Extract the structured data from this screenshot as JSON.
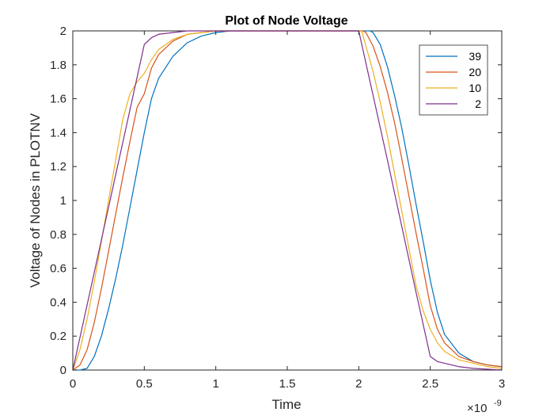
{
  "chart_data": {
    "type": "line",
    "title": "Plot of Node Voltage",
    "xlabel": "Time",
    "ylabel": "Voltage of Nodes in PLOTNV",
    "x_exponent": {
      "base": "×10",
      "exponent": "-9"
    },
    "xlim": [
      0,
      3
    ],
    "ylim": [
      0,
      2
    ],
    "x_ticks": [
      0,
      0.5,
      1,
      1.5,
      2,
      2.5,
      3
    ],
    "x_tick_labels": [
      "0",
      "0.5",
      "1",
      "1.5",
      "2",
      "2.5",
      "3"
    ],
    "y_ticks": [
      0,
      0.2,
      0.4,
      0.6,
      0.8,
      1,
      1.2,
      1.4,
      1.6,
      1.8,
      2
    ],
    "y_tick_labels": [
      "0",
      "0.2",
      "0.4",
      "0.6",
      "0.8",
      "1",
      "1.2",
      "1.4",
      "1.6",
      "1.8",
      "2"
    ],
    "grid": false,
    "legend_position": "top-right",
    "series": [
      {
        "name": "39",
        "color": "#0072BD",
        "points": [
          [
            0,
            0
          ],
          [
            0.05,
            0
          ],
          [
            0.1,
            0.01
          ],
          [
            0.15,
            0.08
          ],
          [
            0.2,
            0.2
          ],
          [
            0.25,
            0.36
          ],
          [
            0.3,
            0.54
          ],
          [
            0.35,
            0.74
          ],
          [
            0.4,
            0.96
          ],
          [
            0.45,
            1.18
          ],
          [
            0.5,
            1.4
          ],
          [
            0.55,
            1.6
          ],
          [
            0.6,
            1.72
          ],
          [
            0.7,
            1.85
          ],
          [
            0.8,
            1.93
          ],
          [
            0.9,
            1.97
          ],
          [
            1.0,
            1.99
          ],
          [
            1.1,
            2.0
          ],
          [
            1.5,
            2.0
          ],
          [
            2.0,
            2.0
          ],
          [
            2.05,
            2.0
          ],
          [
            2.08,
            2.0
          ],
          [
            2.1,
            1.99
          ],
          [
            2.15,
            1.92
          ],
          [
            2.2,
            1.79
          ],
          [
            2.25,
            1.62
          ],
          [
            2.3,
            1.43
          ],
          [
            2.35,
            1.21
          ],
          [
            2.4,
            0.98
          ],
          [
            2.45,
            0.76
          ],
          [
            2.5,
            0.53
          ],
          [
            2.55,
            0.34
          ],
          [
            2.6,
            0.21
          ],
          [
            2.7,
            0.1
          ],
          [
            2.8,
            0.05
          ],
          [
            2.9,
            0.03
          ],
          [
            3.0,
            0.02
          ]
        ]
      },
      {
        "name": "20",
        "color": "#D95319",
        "points": [
          [
            0,
            0
          ],
          [
            0.05,
            0.03
          ],
          [
            0.1,
            0.12
          ],
          [
            0.15,
            0.28
          ],
          [
            0.2,
            0.48
          ],
          [
            0.25,
            0.7
          ],
          [
            0.3,
            0.92
          ],
          [
            0.35,
            1.14
          ],
          [
            0.4,
            1.35
          ],
          [
            0.45,
            1.55
          ],
          [
            0.5,
            1.63
          ],
          [
            0.55,
            1.78
          ],
          [
            0.6,
            1.86
          ],
          [
            0.7,
            1.94
          ],
          [
            0.8,
            1.98
          ],
          [
            0.9,
            1.99
          ],
          [
            1.0,
            2.0
          ],
          [
            1.5,
            2.0
          ],
          [
            2.0,
            2.0
          ],
          [
            2.03,
            2.0
          ],
          [
            2.05,
            1.99
          ],
          [
            2.1,
            1.91
          ],
          [
            2.15,
            1.79
          ],
          [
            2.2,
            1.64
          ],
          [
            2.25,
            1.46
          ],
          [
            2.3,
            1.25
          ],
          [
            2.35,
            1.03
          ],
          [
            2.4,
            0.81
          ],
          [
            2.45,
            0.6
          ],
          [
            2.5,
            0.38
          ],
          [
            2.55,
            0.24
          ],
          [
            2.6,
            0.16
          ],
          [
            2.7,
            0.08
          ],
          [
            2.8,
            0.05
          ],
          [
            2.9,
            0.03
          ],
          [
            3.0,
            0.02
          ]
        ]
      },
      {
        "name": "10",
        "color": "#EDB120",
        "points": [
          [
            0,
            0
          ],
          [
            0.05,
            0.12
          ],
          [
            0.1,
            0.3
          ],
          [
            0.15,
            0.52
          ],
          [
            0.2,
            0.76
          ],
          [
            0.25,
            1.0
          ],
          [
            0.3,
            1.24
          ],
          [
            0.35,
            1.48
          ],
          [
            0.4,
            1.63
          ],
          [
            0.45,
            1.7
          ],
          [
            0.5,
            1.75
          ],
          [
            0.55,
            1.83
          ],
          [
            0.6,
            1.89
          ],
          [
            0.7,
            1.95
          ],
          [
            0.8,
            1.98
          ],
          [
            0.9,
            1.99
          ],
          [
            1.0,
            2.0
          ],
          [
            1.5,
            2.0
          ],
          [
            2.0,
            2.0
          ],
          [
            2.02,
            2.0
          ],
          [
            2.05,
            1.91
          ],
          [
            2.1,
            1.76
          ],
          [
            2.15,
            1.58
          ],
          [
            2.2,
            1.38
          ],
          [
            2.25,
            1.16
          ],
          [
            2.3,
            0.94
          ],
          [
            2.35,
            0.72
          ],
          [
            2.4,
            0.5
          ],
          [
            2.45,
            0.35
          ],
          [
            2.5,
            0.24
          ],
          [
            2.55,
            0.16
          ],
          [
            2.6,
            0.11
          ],
          [
            2.7,
            0.06
          ],
          [
            2.8,
            0.04
          ],
          [
            2.9,
            0.02
          ],
          [
            3.0,
            0.01
          ]
        ]
      },
      {
        "name": "2",
        "color": "#7E2F8E",
        "points": [
          [
            0,
            0
          ],
          [
            0.5,
            1.92
          ],
          [
            0.55,
            1.96
          ],
          [
            0.6,
            1.98
          ],
          [
            0.7,
            1.99
          ],
          [
            0.8,
            2.0
          ],
          [
            1.0,
            2.0
          ],
          [
            1.5,
            2.0
          ],
          [
            2.0,
            2.0
          ],
          [
            2.1,
            1.62
          ],
          [
            2.2,
            1.24
          ],
          [
            2.3,
            0.85
          ],
          [
            2.4,
            0.46
          ],
          [
            2.5,
            0.08
          ],
          [
            2.55,
            0.05
          ],
          [
            2.6,
            0.04
          ],
          [
            2.7,
            0.02
          ],
          [
            2.8,
            0.01
          ],
          [
            3.0,
            0.0
          ]
        ]
      }
    ]
  }
}
